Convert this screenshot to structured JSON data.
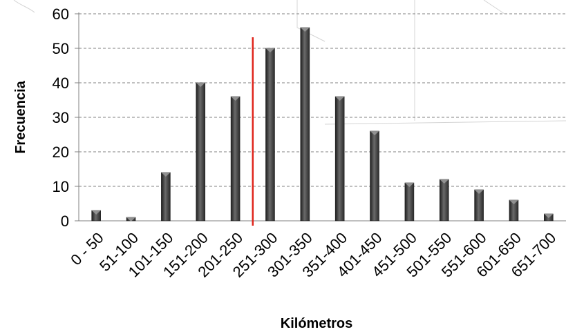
{
  "chart_data": {
    "type": "bar",
    "title": "",
    "xlabel": "Kilómetros",
    "ylabel": "Frecuencia",
    "ylim": [
      0,
      60
    ],
    "yticks": [
      0,
      10,
      20,
      30,
      40,
      50,
      60
    ],
    "grid": true,
    "categories": [
      "0 - 50",
      "51-100",
      "101-150",
      "151-200",
      "201-250",
      "251-300",
      "301-350",
      "351-400",
      "401-450",
      "451-500",
      "501-550",
      "551-600",
      "601-650",
      "651-700"
    ],
    "values": [
      3,
      1,
      14,
      40,
      36,
      50,
      56,
      36,
      26,
      11,
      12,
      9,
      6,
      2
    ],
    "reference_line": {
      "between_categories": [
        "201-250",
        "251-300"
      ],
      "color": "#e0241b"
    },
    "colors": {
      "bar": "#444444",
      "grid": "#808080",
      "axis": "#808080"
    }
  }
}
